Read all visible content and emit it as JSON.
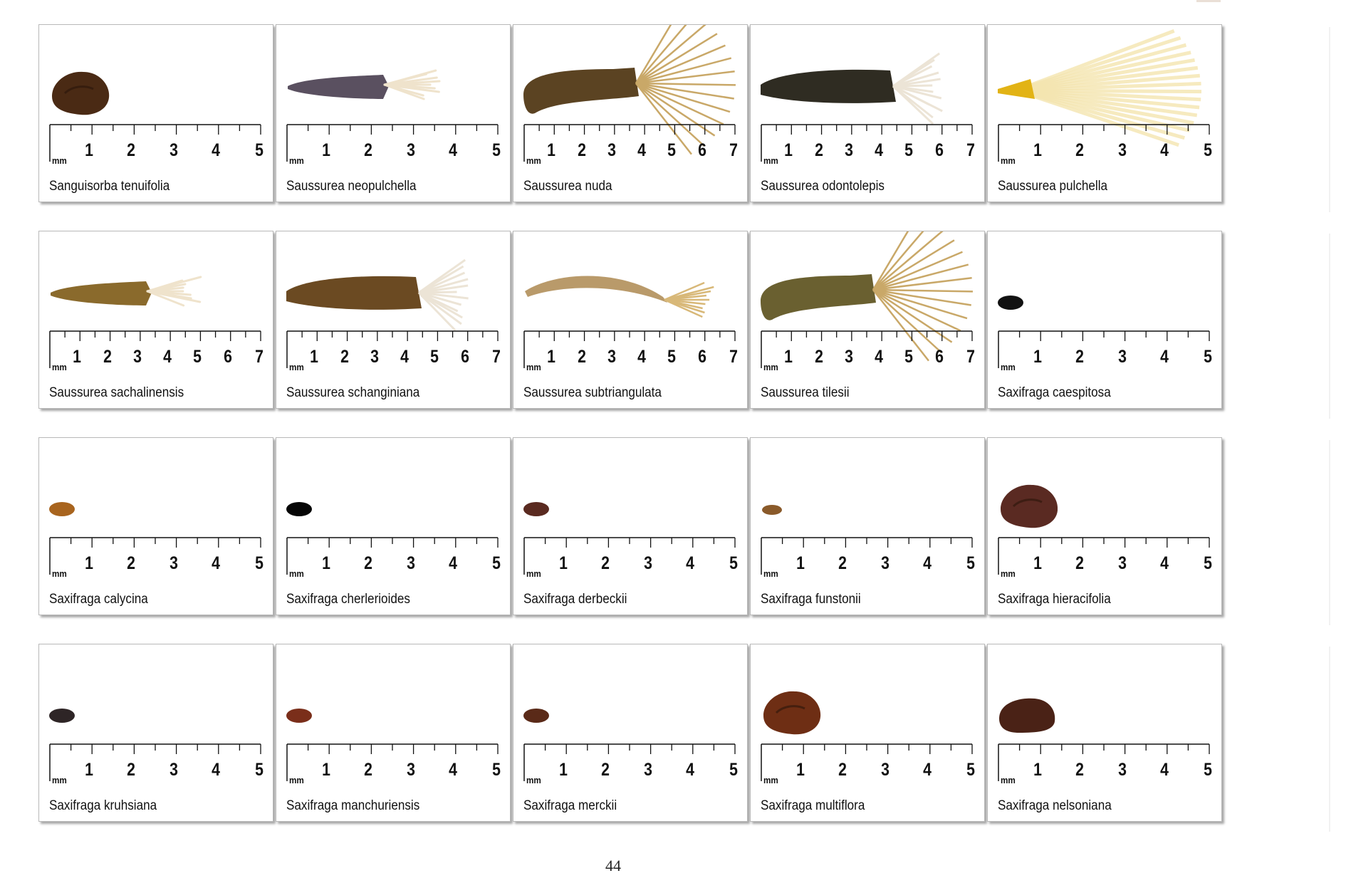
{
  "page_number": "44",
  "ruler_unit": "mm",
  "cards": [
    {
      "name": "Sanguisorba tenuifolia",
      "scale": [
        1,
        2,
        3,
        4,
        5
      ],
      "seed": "ovoid",
      "color": "#4a2a14"
    },
    {
      "name": "Saussurea neopulchella",
      "scale": [
        1,
        2,
        3,
        4,
        5
      ],
      "seed": "pappus-short",
      "color": "#5a5060"
    },
    {
      "name": "Saussurea nuda",
      "scale": [
        1,
        2,
        3,
        4,
        5,
        6,
        7
      ],
      "seed": "pappus-long",
      "color": "#5b4322"
    },
    {
      "name": "Saussurea odontolepis",
      "scale": [
        1,
        2,
        3,
        4,
        5,
        6,
        7
      ],
      "seed": "pappus-white",
      "color": "#2f2c22"
    },
    {
      "name": "Saussurea pulchella",
      "scale": [
        1,
        2,
        3,
        4,
        5
      ],
      "seed": "fan",
      "color": "#e2b315"
    },
    {
      "name": "Saussurea sachalinensis",
      "scale": [
        1,
        2,
        3,
        4,
        5,
        6,
        7
      ],
      "seed": "pappus-short",
      "color": "#8a6a2c"
    },
    {
      "name": "Saussurea schanginiana",
      "scale": [
        1,
        2,
        3,
        4,
        5,
        6,
        7
      ],
      "seed": "pappus-white",
      "color": "#6b4a22"
    },
    {
      "name": "Saussurea subtriangulata",
      "scale": [
        1,
        2,
        3,
        4,
        5,
        6,
        7
      ],
      "seed": "curved",
      "color": "#b99a6a"
    },
    {
      "name": "Saussurea tilesii",
      "scale": [
        1,
        2,
        3,
        4,
        5,
        6,
        7
      ],
      "seed": "pappus-long",
      "color": "#6a6030"
    },
    {
      "name": "Saxifraga caespitosa",
      "scale": [
        1,
        2,
        3,
        4,
        5
      ],
      "seed": "small",
      "color": "#111111"
    },
    {
      "name": "Saxifraga calycina",
      "scale": [
        1,
        2,
        3,
        4,
        5
      ],
      "seed": "small",
      "color": "#a8641e"
    },
    {
      "name": "Saxifraga cherlerioides",
      "scale": [
        1,
        2,
        3,
        4,
        5
      ],
      "seed": "small",
      "color": "#050505"
    },
    {
      "name": "Saxifraga derbeckii",
      "scale": [
        1,
        2,
        3,
        4,
        5
      ],
      "seed": "small",
      "color": "#5a2a20"
    },
    {
      "name": "Saxifraga funstonii",
      "scale": [
        1,
        2,
        3,
        4,
        5
      ],
      "seed": "tiny",
      "color": "#8a5a2a"
    },
    {
      "name": "Saxifraga hieracifolia",
      "scale": [
        1,
        2,
        3,
        4,
        5
      ],
      "seed": "ovoid",
      "color": "#5a2a22"
    },
    {
      "name": "Saxifraga kruhsiana",
      "scale": [
        1,
        2,
        3,
        4,
        5
      ],
      "seed": "small",
      "color": "#2e2526"
    },
    {
      "name": "Saxifraga manchuriensis",
      "scale": [
        1,
        2,
        3,
        4,
        5
      ],
      "seed": "small",
      "color": "#7a2e1a"
    },
    {
      "name": "Saxifraga merckii",
      "scale": [
        1,
        2,
        3,
        4,
        5
      ],
      "seed": "small",
      "color": "#5a2a18"
    },
    {
      "name": "Saxifraga multiflora",
      "scale": [
        1,
        2,
        3,
        4,
        5
      ],
      "seed": "ovoid",
      "color": "#6e2e14"
    },
    {
      "name": "Saxifraga nelsoniana",
      "scale": [
        1,
        2,
        3,
        4,
        5
      ],
      "seed": "large",
      "color": "#4a2216"
    }
  ]
}
